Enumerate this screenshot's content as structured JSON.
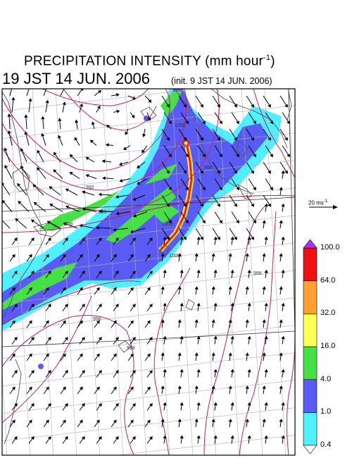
{
  "header": {
    "title": "PRECIPITATION INTENSITY (mm hour",
    "title_sup": "-1",
    "title_close": ")",
    "valid_time": "19 JST 14 JUN. 2006",
    "init_time": "(init. 9 JST 14 JUN. 2006)"
  },
  "wind_reference": {
    "value": "20 ms",
    "sup": "-1"
  },
  "colorbar": {
    "levels": [
      "0.4",
      "1.0",
      "4.0",
      "16.0",
      "32.0",
      "64.0",
      "100.0"
    ],
    "colors": [
      "#4ff0ff",
      "#5a5af5",
      "#44e044",
      "#ffff55",
      "#ffa030",
      "#f01010"
    ],
    "over_color": "#b030f0",
    "under_color": "#ffffff"
  },
  "map_colors": {
    "isobar": "#c0206a",
    "coast": "#555555",
    "grid": "#b0b0b0",
    "frame": "#000000"
  },
  "isobar_labels": [
    "992",
    "996",
    "998",
    "1000",
    "1000",
    "996",
    "998",
    "998",
    "996",
    "1000"
  ]
}
